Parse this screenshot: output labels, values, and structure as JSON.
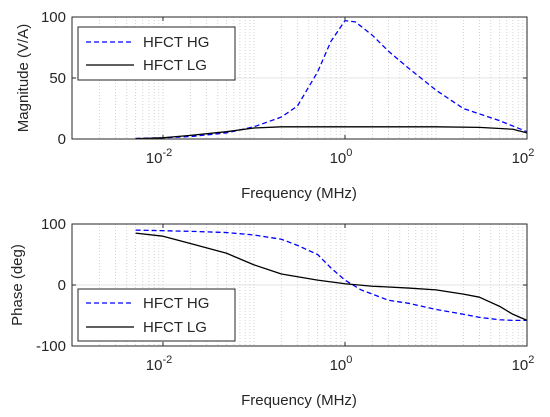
{
  "chart_data": [
    {
      "type": "line",
      "title": "",
      "xlabel": "Frequency (MHz)",
      "ylabel": "Magnitude (V/A)",
      "xscale": "log",
      "xlim": [
        0.001,
        100
      ],
      "ylim": [
        0,
        100
      ],
      "xticks": [
        {
          "value": 0.01,
          "base": "10",
          "exp": "-2"
        },
        {
          "value": 1,
          "base": "10",
          "exp": "0"
        },
        {
          "value": 100,
          "base": "10",
          "exp": "2"
        }
      ],
      "yticks": [
        {
          "value": 0,
          "label": "0"
        },
        {
          "value": 50,
          "label": "50"
        },
        {
          "value": 100,
          "label": "100"
        }
      ],
      "grid": "on",
      "legend_position": "top-left",
      "series": [
        {
          "name": "HFCT HG",
          "style": "dashed",
          "color": "#0000ff",
          "points": [
            [
              0.005,
              0.5
            ],
            [
              0.01,
              1
            ],
            [
              0.02,
              2
            ],
            [
              0.05,
              5
            ],
            [
              0.1,
              10
            ],
            [
              0.2,
              18
            ],
            [
              0.3,
              27
            ],
            [
              0.5,
              55
            ],
            [
              0.7,
              80
            ],
            [
              1,
              97
            ],
            [
              1.3,
              96
            ],
            [
              2,
              85
            ],
            [
              3,
              72
            ],
            [
              5,
              58
            ],
            [
              10,
              40
            ],
            [
              20,
              25
            ],
            [
              50,
              15
            ],
            [
              100,
              6
            ]
          ]
        },
        {
          "name": "HFCT LG",
          "style": "solid",
          "color": "#000000",
          "points": [
            [
              0.005,
              0.2
            ],
            [
              0.01,
              1
            ],
            [
              0.02,
              3
            ],
            [
              0.05,
              6
            ],
            [
              0.1,
              9
            ],
            [
              0.2,
              10
            ],
            [
              1,
              10
            ],
            [
              10,
              10
            ],
            [
              30,
              9.5
            ],
            [
              70,
              8
            ],
            [
              100,
              5
            ]
          ]
        }
      ]
    },
    {
      "type": "line",
      "title": "",
      "xlabel": "Frequency (MHz)",
      "ylabel": "Phase (deg)",
      "xscale": "log",
      "xlim": [
        0.001,
        100
      ],
      "ylim": [
        -100,
        100
      ],
      "xticks": [
        {
          "value": 0.01,
          "base": "10",
          "exp": "-2"
        },
        {
          "value": 1,
          "base": "10",
          "exp": "0"
        },
        {
          "value": 100,
          "base": "10",
          "exp": "2"
        }
      ],
      "yticks": [
        {
          "value": -100,
          "label": "-100"
        },
        {
          "value": 0,
          "label": "0"
        },
        {
          "value": 100,
          "label": "100"
        }
      ],
      "grid": "on",
      "legend_position": "bottom-left",
      "series": [
        {
          "name": "HFCT HG",
          "style": "dashed",
          "color": "#0000ff",
          "points": [
            [
              0.005,
              90
            ],
            [
              0.01,
              89
            ],
            [
              0.02,
              88
            ],
            [
              0.05,
              86
            ],
            [
              0.1,
              82
            ],
            [
              0.2,
              75
            ],
            [
              0.3,
              65
            ],
            [
              0.5,
              50
            ],
            [
              0.7,
              28
            ],
            [
              1,
              8
            ],
            [
              1.5,
              -8
            ],
            [
              2,
              -15
            ],
            [
              3,
              -25
            ],
            [
              5,
              -30
            ],
            [
              10,
              -40
            ],
            [
              20,
              -48
            ],
            [
              30,
              -53
            ],
            [
              50,
              -57
            ],
            [
              70,
              -58
            ],
            [
              100,
              -58
            ]
          ]
        },
        {
          "name": "HFCT LG",
          "style": "solid",
          "color": "#000000",
          "points": [
            [
              0.005,
              85
            ],
            [
              0.01,
              80
            ],
            [
              0.02,
              68
            ],
            [
              0.05,
              52
            ],
            [
              0.1,
              33
            ],
            [
              0.2,
              18
            ],
            [
              0.5,
              8
            ],
            [
              1,
              2
            ],
            [
              2,
              -2
            ],
            [
              5,
              -5
            ],
            [
              10,
              -8
            ],
            [
              20,
              -15
            ],
            [
              30,
              -20
            ],
            [
              50,
              -35
            ],
            [
              70,
              -48
            ],
            [
              100,
              -58
            ]
          ]
        }
      ]
    }
  ]
}
